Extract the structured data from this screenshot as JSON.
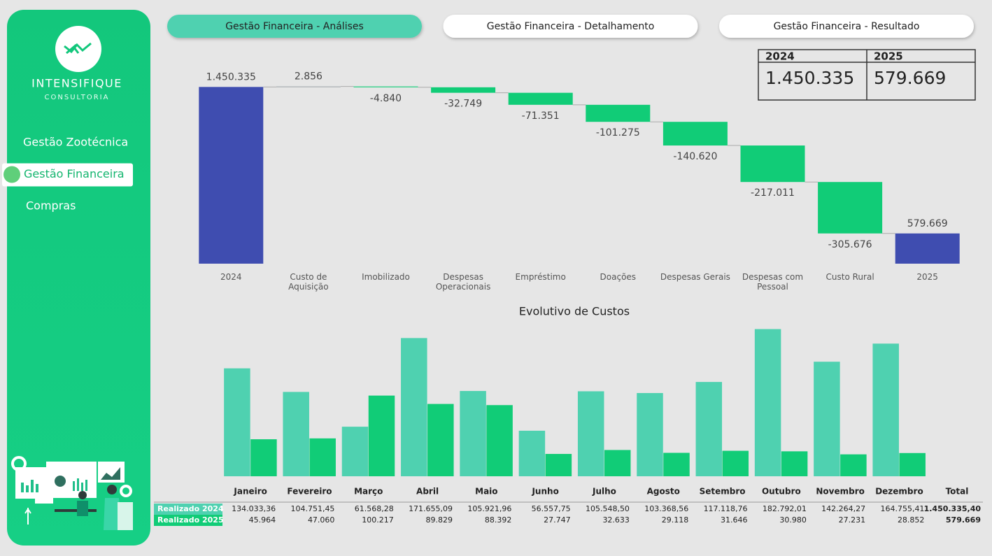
{
  "sidebar": {
    "brand": "INTENSIFIQUE",
    "tagline": "CONSULTORIA",
    "menu": [
      "Gestão Zootécnica",
      "Gestão Financeira",
      "Compras"
    ],
    "active": 1
  },
  "tabs": {
    "items": [
      "Gestão Financeira - Análises",
      "Gestão Financeira - Detalhamento",
      "Gestão Financeira - Resultado"
    ],
    "active": 0
  },
  "kpis": [
    {
      "year": "2024",
      "value": "1.450.335"
    },
    {
      "year": "2025",
      "value": "579.669"
    }
  ],
  "chart_data": [
    {
      "type": "waterfall",
      "categories": [
        "2024",
        "Custo de Aquisição",
        "Imobilizado",
        "Despesas Operacionais",
        "Empréstimo",
        "Doações",
        "Despesas Gerais",
        "Despesas com Pessoal",
        "Custo Rural",
        "2025"
      ],
      "values": [
        1450335,
        2856,
        -4840,
        -32749,
        -71351,
        -101275,
        -140620,
        -217011,
        -305676,
        579669
      ],
      "value_labels": [
        "1.450.335",
        "2.856",
        "-4.840",
        "-32.749",
        "-71.351",
        "-101.275",
        "-140.620",
        "-217.011",
        "-305.676",
        "579.669"
      ],
      "total_color": "#3f4db0",
      "increase_color": "#9aa0a6",
      "decrease_color": "#11cc77",
      "ylim": [
        400000,
        1460000
      ]
    },
    {
      "type": "bar",
      "title": "Evolutivo de Custos",
      "categories": [
        "Janeiro",
        "Fevereiro",
        "Março",
        "Abril",
        "Maio",
        "Junho",
        "Julho",
        "Agosto",
        "Setembro",
        "Outubro",
        "Novembro",
        "Dezembro"
      ],
      "total_header": "Total",
      "series": [
        {
          "name": "Realizado 2024",
          "color": "#4fd1b0",
          "values": [
            134033.36,
            104751.45,
            61568.28,
            171655.09,
            105921.96,
            56557.75,
            105548.5,
            103368.56,
            117118.76,
            182792.01,
            142264.27,
            164755.41
          ],
          "value_labels": [
            "134.033,36",
            "104.751,45",
            "61.568,28",
            "171.655,09",
            "105.921,96",
            "56.557,75",
            "105.548,50",
            "103.368,56",
            "117.118,76",
            "182.792,01",
            "142.264,27",
            "164.755,41"
          ],
          "total": 1450335.4,
          "total_label": "1.450.335,40"
        },
        {
          "name": "Realizado 2025",
          "color": "#11cc77",
          "values": [
            45964,
            47060,
            100217,
            89829,
            88392,
            27747,
            32633,
            29118,
            31646,
            30980,
            27231,
            28852
          ],
          "value_labels": [
            "45.964",
            "47.060",
            "100.217",
            "89.829",
            "88.392",
            "27.747",
            "32.633",
            "29.118",
            "31.646",
            "30.980",
            "27.231",
            "28.852"
          ],
          "total": 579669,
          "total_label": "579.669"
        }
      ],
      "ylim": [
        0,
        185000
      ]
    }
  ]
}
